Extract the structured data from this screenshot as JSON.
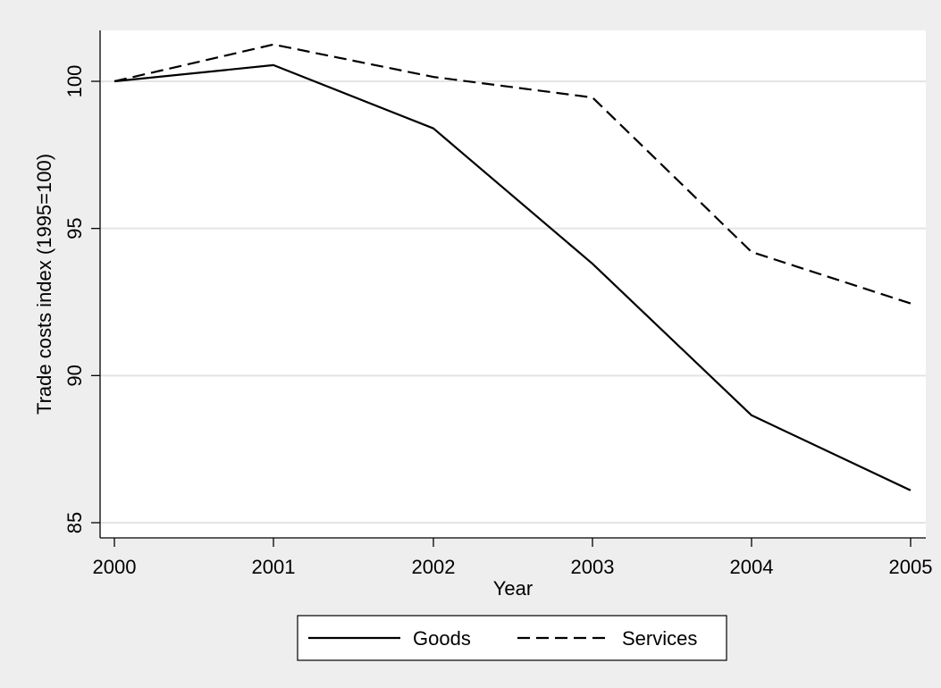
{
  "chart_data": {
    "type": "line",
    "title": "",
    "xlabel": "Year",
    "ylabel": "Trade costs index (1995=100)",
    "x": [
      2000,
      2001,
      2002,
      2003,
      2004,
      2005
    ],
    "xlim": [
      2000,
      2005
    ],
    "ylim": [
      85,
      101.5
    ],
    "x_ticks": [
      "2000",
      "2001",
      "2002",
      "2003",
      "2004",
      "2005"
    ],
    "y_ticks": [
      "85",
      "90",
      "95",
      "100"
    ],
    "y_tick_values": [
      85,
      90,
      95,
      100
    ],
    "grid": true,
    "legend_position": "bottom",
    "colors": {
      "plot_background": "#ffffff",
      "outer_background": "#eeeeee",
      "gridline": "#e4e4e4",
      "line": "#000000"
    },
    "series": [
      {
        "name": "Goods",
        "line_style": "solid",
        "values": [
          100,
          100.55,
          98.4,
          93.8,
          88.65,
          86.1
        ]
      },
      {
        "name": "Services",
        "line_style": "dashed",
        "values": [
          100,
          101.25,
          100.15,
          99.45,
          94.2,
          92.45
        ]
      }
    ]
  }
}
